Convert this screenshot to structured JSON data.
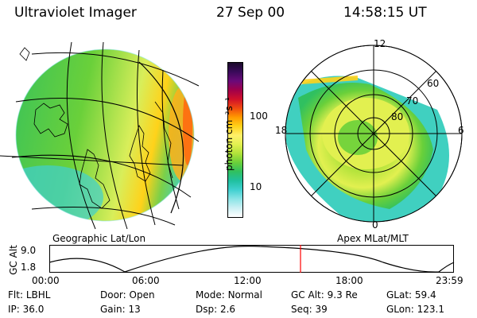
{
  "header": {
    "instrument": "Ultraviolet Imager",
    "date": "27 Sep 00",
    "time": "14:58:15 UT"
  },
  "left_panel": {
    "caption": "Geographic Lat/Lon"
  },
  "right_panel": {
    "caption": "Apex MLat/MLT",
    "mlat_labels": [
      "80",
      "70",
      "60"
    ],
    "mlt_labels": {
      "top": "12",
      "right": "6",
      "bottom": "0",
      "left": "18"
    }
  },
  "colorbar": {
    "unit_label": "photon cm⁻²s⁻¹",
    "tick_labels": [
      "100",
      "10"
    ],
    "colors": [
      "#1a0a2a",
      "#3a0a5a",
      "#6a0a7a",
      "#a0004a",
      "#d0102a",
      "#f04a10",
      "#ff9a00",
      "#ffd21a",
      "#fff06a",
      "#e2f050",
      "#b0e23a",
      "#6ad03a",
      "#30c060",
      "#20c0a0",
      "#40d0d0",
      "#8ae4e6",
      "#ccf0f4",
      "#ffffff"
    ]
  },
  "altitude_plot": {
    "ylabel": "GC Alt",
    "y_ticks": [
      "9.0",
      "1.8"
    ],
    "x_ticks": [
      "00:00",
      "06:00",
      "12:00",
      "18:00",
      "23:59"
    ],
    "curve_color": "#000000",
    "marker_color": "#ff0000"
  },
  "info": {
    "row1": [
      {
        "label": "Flt:",
        "value": "LBHL"
      },
      {
        "label": "Door:",
        "value": "Open"
      },
      {
        "label": "Mode:",
        "value": "Normal"
      },
      {
        "label": "GC Alt:",
        "value": "9.3 Re"
      },
      {
        "label": "GLat:",
        "value": "59.4"
      }
    ],
    "row2": [
      {
        "label": "IP:",
        "value": "36.0"
      },
      {
        "label": "Gain:",
        "value": "13"
      },
      {
        "label": "Dsp:",
        "value": "2.6"
      },
      {
        "label": "Seq:",
        "value": "39"
      },
      {
        "label": "GLon:",
        "value": "123.1"
      }
    ]
  }
}
